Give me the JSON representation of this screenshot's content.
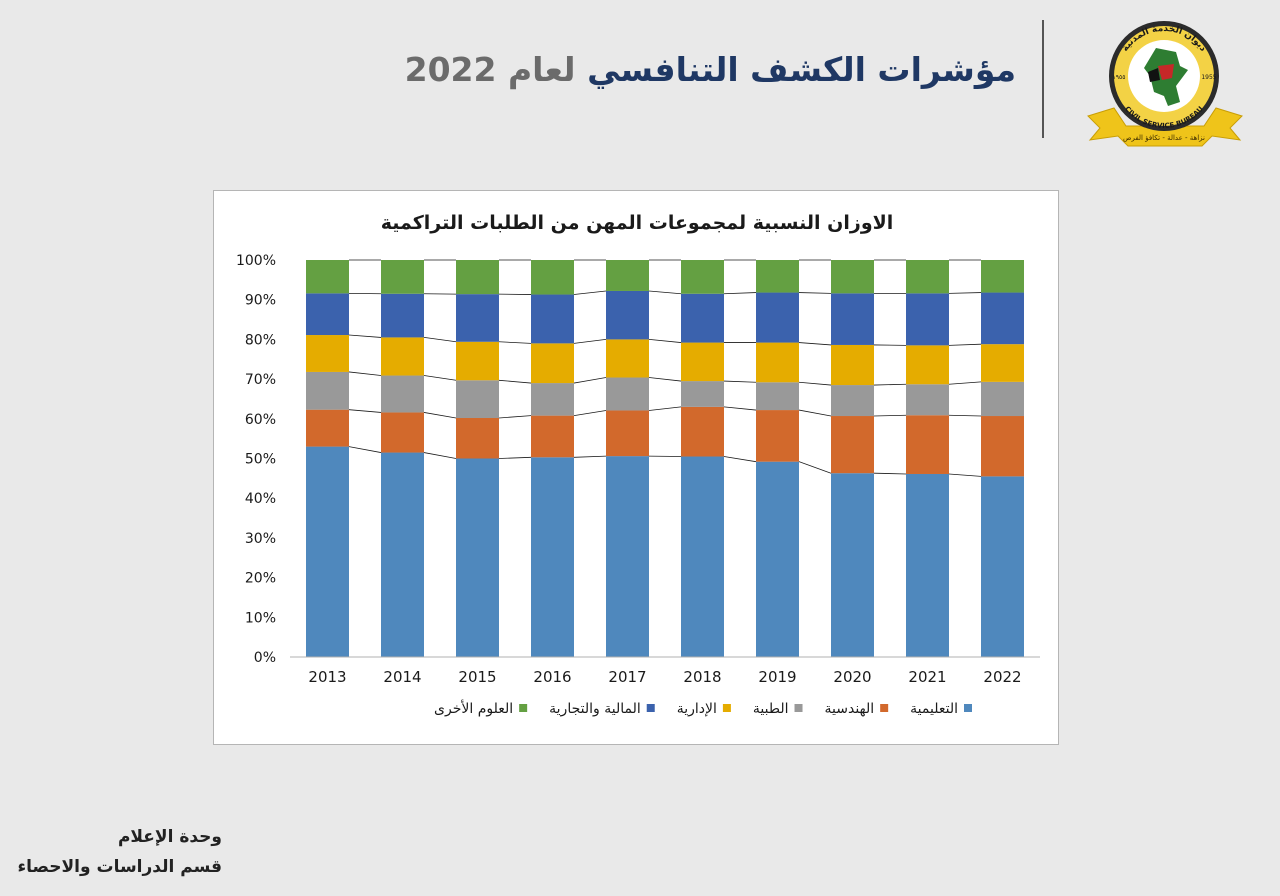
{
  "header": {
    "title_main": "مؤشرات الكشف التنافسي",
    "title_sub": "لعام 2022"
  },
  "logo": {
    "ring_text": "ديوان الخدمة المدنية",
    "ring_text_en": "CIVIL SERVICE BUREAU",
    "year_left": "١٩٥٥",
    "year_right": "1955",
    "ribbon_text": "نزاهة - عدالة - تكافؤ الفرص"
  },
  "footer": {
    "line1": "وحدة الإعلام",
    "line2": "قسم الدراسات والاحصاء"
  },
  "chart_data": {
    "type": "bar",
    "stacked": true,
    "title": "الاوزان النسبية لمجموعات المهن من الطلبات التراكمية",
    "categories": [
      "2013",
      "2014",
      "2015",
      "2016",
      "2017",
      "2018",
      "2019",
      "2020",
      "2021",
      "2022"
    ],
    "y_ticks": [
      "0%",
      "10%",
      "20%",
      "30%",
      "40%",
      "50%",
      "60%",
      "70%",
      "80%",
      "90%",
      "100%"
    ],
    "ylim": [
      0,
      100
    ],
    "series": [
      {
        "name": "التعليمية",
        "color": "#4f88bd",
        "values": [
          53,
          51.5,
          50,
          50.3,
          50.6,
          50.5,
          49.2,
          46.3,
          46.1,
          45.5
        ]
      },
      {
        "name": "الهندسية",
        "color": "#d2692c",
        "values": [
          9.3,
          10.1,
          10.2,
          10.5,
          11.5,
          12.5,
          13,
          14.4,
          14.8,
          15.2
        ]
      },
      {
        "name": "الطبية",
        "color": "#999999",
        "values": [
          9.5,
          9.3,
          9.5,
          8.2,
          8.3,
          6.5,
          7,
          7.8,
          7.8,
          8.6
        ]
      },
      {
        "name": "الإدارية",
        "color": "#e5ac00",
        "values": [
          9.3,
          9.6,
          9.7,
          10,
          9.6,
          9.7,
          10,
          10.1,
          9.8,
          9.5
        ]
      },
      {
        "name": "المالية والتجارية",
        "color": "#3b62ad",
        "values": [
          10.5,
          11,
          12,
          12.3,
          12.2,
          12.3,
          12.6,
          13,
          13.1,
          13
        ]
      },
      {
        "name": "العلوم الأخرى",
        "color": "#64a042",
        "values": [
          8.4,
          8.5,
          8.6,
          8.7,
          7.8,
          8.5,
          8.2,
          8.4,
          8.4,
          8.2
        ]
      }
    ]
  }
}
